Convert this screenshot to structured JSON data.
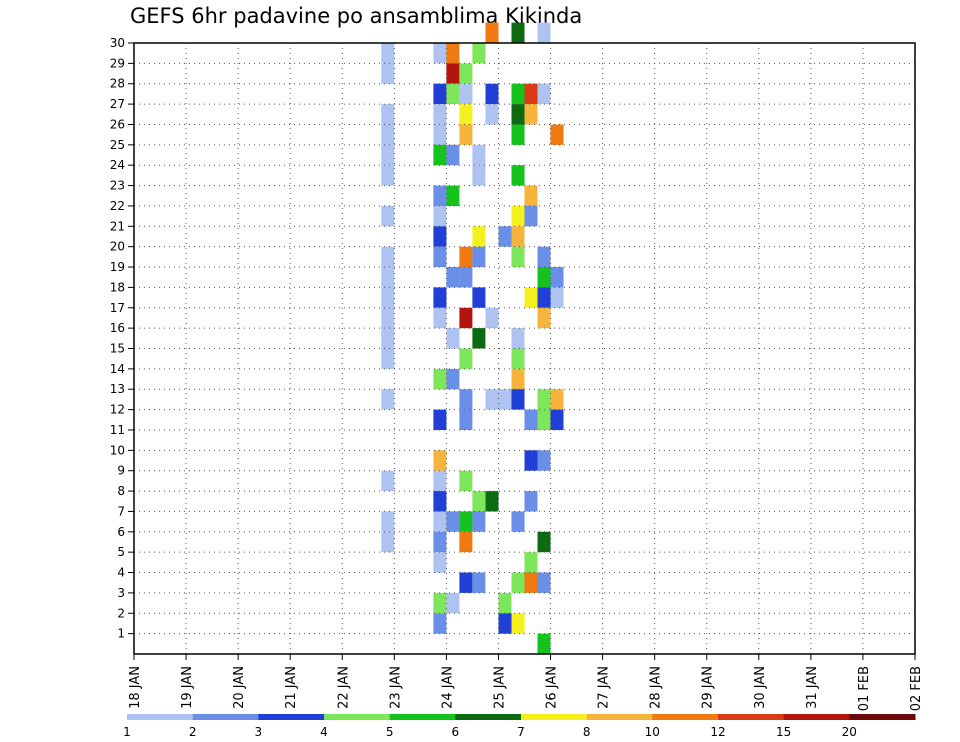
{
  "title": "GEFS 6hr padavine po ansamblima Kikinda",
  "chart_data": {
    "type": "heatmap",
    "title": "GEFS 6hr padavine po ansamblima Kikinda",
    "x_tick_labels": [
      "18 JAN",
      "19 JAN",
      "20 JAN",
      "21 JAN",
      "22 JAN",
      "23 JAN",
      "24 JAN",
      "25 JAN",
      "26 JAN",
      "27 JAN",
      "28 JAN",
      "29 JAN",
      "30 JAN",
      "31 JAN",
      "01 FEB",
      "02 FEB"
    ],
    "y_tick_labels": [
      "1",
      "2",
      "3",
      "4",
      "5",
      "6",
      "7",
      "8",
      "9",
      "10",
      "11",
      "12",
      "13",
      "14",
      "15",
      "16",
      "17",
      "18",
      "19",
      "20",
      "21",
      "22",
      "23",
      "24",
      "25",
      "26",
      "27",
      "28",
      "29",
      "30"
    ],
    "xlim": [
      "18 JAN",
      "02 FEB"
    ],
    "ylim": [
      0,
      30
    ],
    "grid": true,
    "colorbar": {
      "labels": [
        "1",
        "2",
        "3",
        "4",
        "5",
        "6",
        "7",
        "8",
        "10",
        "12",
        "15",
        "20"
      ],
      "colors": [
        "#aec3f2",
        "#6a8fe8",
        "#1f3fd6",
        "#7ee65a",
        "#16c21c",
        "#0c6b10",
        "#f6f01c",
        "#f6b43c",
        "#f07a10",
        "#dc3a14",
        "#b4140e",
        "#6e0a0a"
      ]
    },
    "cells": [
      [
        19,
        29,
        1
      ],
      [
        19,
        28,
        1
      ],
      [
        19,
        26,
        1
      ],
      [
        19,
        25,
        1
      ],
      [
        19,
        24,
        1
      ],
      [
        19,
        23,
        1
      ],
      [
        19,
        21,
        1
      ],
      [
        19,
        19,
        1
      ],
      [
        19,
        18,
        1
      ],
      [
        19,
        17,
        1
      ],
      [
        19,
        16,
        1
      ],
      [
        19,
        15,
        1
      ],
      [
        19,
        14,
        1
      ],
      [
        19,
        12,
        1
      ],
      [
        19,
        8,
        1
      ],
      [
        19,
        6,
        1
      ],
      [
        19,
        5,
        1
      ],
      [
        23,
        29,
        1
      ],
      [
        23,
        27,
        3
      ],
      [
        23,
        26,
        1
      ],
      [
        23,
        25,
        1
      ],
      [
        23,
        24,
        5
      ],
      [
        23,
        22,
        2
      ],
      [
        23,
        21,
        1
      ],
      [
        23,
        20,
        3
      ],
      [
        23,
        19,
        2
      ],
      [
        23,
        17,
        3
      ],
      [
        23,
        16,
        1
      ],
      [
        23,
        13,
        4
      ],
      [
        23,
        11,
        3
      ],
      [
        23,
        9,
        10
      ],
      [
        23,
        8,
        1
      ],
      [
        23,
        7,
        3
      ],
      [
        23,
        6,
        1
      ],
      [
        23,
        5,
        2
      ],
      [
        23,
        4,
        1
      ],
      [
        23,
        2,
        4
      ],
      [
        23,
        1,
        2
      ],
      [
        24,
        29,
        13
      ],
      [
        24,
        28,
        20
      ],
      [
        24,
        27,
        4
      ],
      [
        24,
        18,
        2
      ],
      [
        24,
        15,
        1
      ],
      [
        24,
        13,
        2
      ],
      [
        24,
        6,
        2
      ],
      [
        24,
        2,
        1
      ],
      [
        24,
        22,
        5
      ],
      [
        24,
        24,
        2
      ],
      [
        25,
        28,
        4
      ],
      [
        25,
        27,
        1
      ],
      [
        25,
        26,
        8
      ],
      [
        25,
        25,
        10
      ],
      [
        25,
        19,
        13
      ],
      [
        25,
        18,
        2
      ],
      [
        25,
        16,
        20
      ],
      [
        25,
        14,
        4
      ],
      [
        25,
        12,
        2
      ],
      [
        25,
        11,
        2
      ],
      [
        25,
        8,
        4
      ],
      [
        25,
        6,
        5
      ],
      [
        25,
        5,
        13
      ],
      [
        25,
        3,
        3
      ],
      [
        26,
        24,
        1
      ],
      [
        26,
        23,
        1
      ],
      [
        26,
        20,
        8
      ],
      [
        26,
        19,
        2
      ],
      [
        26,
        17,
        3
      ],
      [
        26,
        15,
        6
      ],
      [
        26,
        7,
        4
      ],
      [
        26,
        6,
        2
      ],
      [
        26,
        3,
        2
      ],
      [
        26,
        29,
        4
      ],
      [
        27,
        30,
        13
      ],
      [
        27,
        27,
        3
      ],
      [
        27,
        26,
        1
      ],
      [
        27,
        16,
        1
      ],
      [
        27,
        12,
        1
      ],
      [
        27,
        7,
        6
      ],
      [
        28,
        20,
        2
      ],
      [
        28,
        12,
        1
      ],
      [
        28,
        2,
        4
      ],
      [
        28,
        1,
        3
      ],
      [
        29,
        30,
        6
      ],
      [
        29,
        27,
        5
      ],
      [
        29,
        26,
        6
      ],
      [
        29,
        25,
        5
      ],
      [
        29,
        23,
        5
      ],
      [
        29,
        21,
        8
      ],
      [
        29,
        20,
        10
      ],
      [
        29,
        19,
        4
      ],
      [
        29,
        15,
        1
      ],
      [
        29,
        14,
        4
      ],
      [
        29,
        13,
        10
      ],
      [
        29,
        12,
        3
      ],
      [
        29,
        6,
        2
      ],
      [
        29,
        3,
        4
      ],
      [
        29,
        1,
        8
      ],
      [
        30,
        27,
        15
      ],
      [
        30,
        26,
        10
      ],
      [
        30,
        22,
        10
      ],
      [
        30,
        21,
        2
      ],
      [
        30,
        17,
        8
      ],
      [
        30,
        11,
        2
      ],
      [
        30,
        9,
        3
      ],
      [
        30,
        7,
        2
      ],
      [
        30,
        4,
        4
      ],
      [
        30,
        3,
        13
      ],
      [
        31,
        30,
        1
      ],
      [
        31,
        27,
        1
      ],
      [
        31,
        19,
        2
      ],
      [
        31,
        18,
        5
      ],
      [
        31,
        17,
        3
      ],
      [
        31,
        16,
        10
      ],
      [
        31,
        12,
        4
      ],
      [
        31,
        11,
        4
      ],
      [
        31,
        9,
        2
      ],
      [
        31,
        5,
        6
      ],
      [
        31,
        3,
        2
      ],
      [
        31,
        0,
        5
      ],
      [
        32,
        25,
        13
      ],
      [
        32,
        18,
        2
      ],
      [
        32,
        17,
        1
      ],
      [
        32,
        12,
        10
      ],
      [
        32,
        11,
        3
      ]
    ]
  }
}
